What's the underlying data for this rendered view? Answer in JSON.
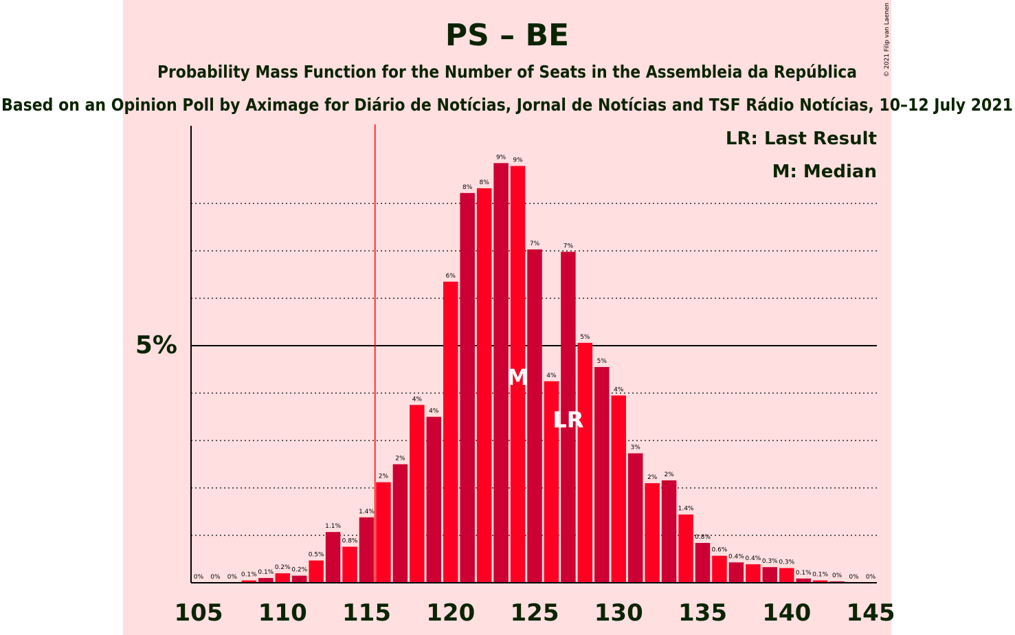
{
  "chart_data": {
    "type": "bar",
    "title": "PS – BE",
    "subtitle": "Probability Mass Function for the Number of Seats in the Assembleia da República",
    "subtitle2": "Based on an Opinion Poll by Aximage for Diário de Notícias, Jornal de Notícias and TSF Rádio Notícias, 10–12 July 2021",
    "copyright": "© 2021 Filip van Laenen",
    "xlabel": "",
    "ylabel": "",
    "x": [
      105,
      106,
      107,
      108,
      109,
      110,
      111,
      112,
      113,
      114,
      115,
      116,
      117,
      118,
      119,
      120,
      121,
      122,
      123,
      124,
      125,
      126,
      127,
      128,
      129,
      130,
      131,
      132,
      133,
      134,
      135,
      136,
      137,
      138,
      139,
      140,
      141,
      142,
      143,
      144,
      145
    ],
    "values": [
      0,
      0,
      0,
      0.05,
      0.1,
      0.2,
      0.15,
      0.47,
      1.07,
      0.76,
      1.38,
      2.12,
      2.5,
      3.75,
      3.5,
      6.35,
      8.22,
      8.32,
      8.85,
      8.79,
      7.03,
      4.25,
      6.98,
      5.06,
      4.55,
      3.95,
      2.73,
      2.1,
      2.16,
      1.44,
      0.84,
      0.57,
      0.43,
      0.39,
      0.33,
      0.31,
      0.09,
      0.05,
      0.03,
      0,
      0
    ],
    "labels": [
      "0%",
      "0%",
      "0%",
      "0.1%",
      "0.1%",
      "0.2%",
      "0.2%",
      "0.5%",
      "1.1%",
      "0.8%",
      "1.4%",
      "2%",
      "2%",
      "4%",
      "4%",
      "6%",
      "8%",
      "8%",
      "9%",
      "9%",
      "7%",
      "4%",
      "7%",
      "5%",
      "5%",
      "4%",
      "3%",
      "2%",
      "2%",
      "1.4%",
      "0.8%",
      "0.6%",
      "0.4%",
      "0.4%",
      "0.3%",
      "0.3%",
      "0.1%",
      "0.1%",
      "0%",
      "0%",
      "0%"
    ],
    "x_ticks": [
      105,
      110,
      115,
      120,
      125,
      130,
      135,
      140,
      145
    ],
    "y_tick_label": "5%",
    "ylim": [
      0,
      9.7
    ],
    "majority_seat": 116,
    "median_seat": 124,
    "last_result_seat": 127,
    "median_marker": "M",
    "last_result_marker": "LR",
    "legend": [
      "LR: Last Result",
      "M: Median"
    ],
    "colors": {
      "band": "#ffdfe0",
      "bar_even": "#cc0033",
      "bar_odd": "#ff0022",
      "text": "#0b2400",
      "majority_line": "#ff0000"
    }
  }
}
